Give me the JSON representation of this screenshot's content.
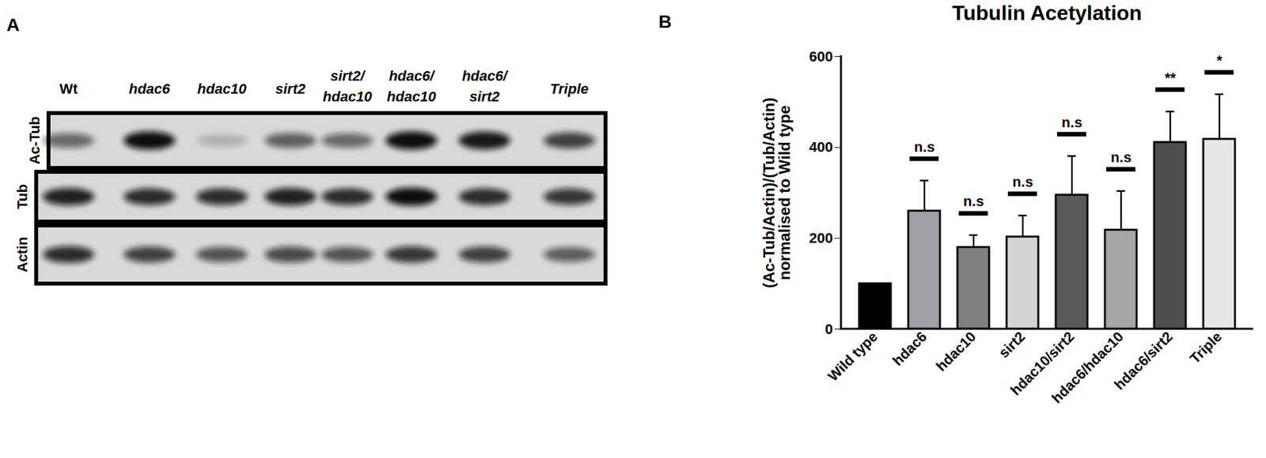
{
  "blot": {
    "panel_label": "A",
    "lanes": [
      "Wt",
      "hdac6",
      "hdac10",
      "sirt2",
      "sirt2/hdac10",
      "hdac6/hdac10",
      "hdac6/sirt2",
      "Triple"
    ],
    "rows": [
      {
        "label": "Ac-Tub",
        "intensity": [
          0.55,
          1.0,
          0.2,
          0.6,
          0.55,
          1.0,
          0.95,
          0.75
        ]
      },
      {
        "label": "Tub",
        "intensity": [
          0.9,
          0.85,
          0.85,
          0.9,
          0.85,
          1.0,
          0.85,
          0.8
        ]
      },
      {
        "label": "Actin",
        "intensity": [
          0.85,
          0.75,
          0.65,
          0.7,
          0.65,
          0.8,
          0.75,
          0.6
        ]
      }
    ]
  },
  "chart_data": {
    "type": "bar",
    "panel_label": "B",
    "title": "Tubulin Acetylation",
    "y_label": "(Ac-Tub/Actin)/(Tub/Actin) normalised to Wild type",
    "categories": [
      "Wild type",
      "hdac6",
      "hdac10",
      "sirt2",
      "hdac10/sirt2",
      "hdac6/hdac10",
      "hdac6/sirt2",
      "Triple"
    ],
    "values": [
      100,
      260,
      180,
      203,
      295,
      218,
      411,
      418
    ],
    "error": [
      null,
      67,
      27,
      47,
      86,
      86,
      68,
      99
    ],
    "significance": [
      null,
      "n.s",
      "n.s",
      "n.s",
      "n.s",
      "n.s",
      "**",
      "*"
    ],
    "colors": [
      "#000000",
      "#a0a0a4",
      "#808080",
      "#d4d4d4",
      "#5a5a5a",
      "#a6a6a6",
      "#4f4f4f",
      "#e6e6e6"
    ],
    "ylim": [
      0,
      600
    ],
    "yticks": [
      0,
      200,
      400,
      600
    ],
    "grid": false
  }
}
